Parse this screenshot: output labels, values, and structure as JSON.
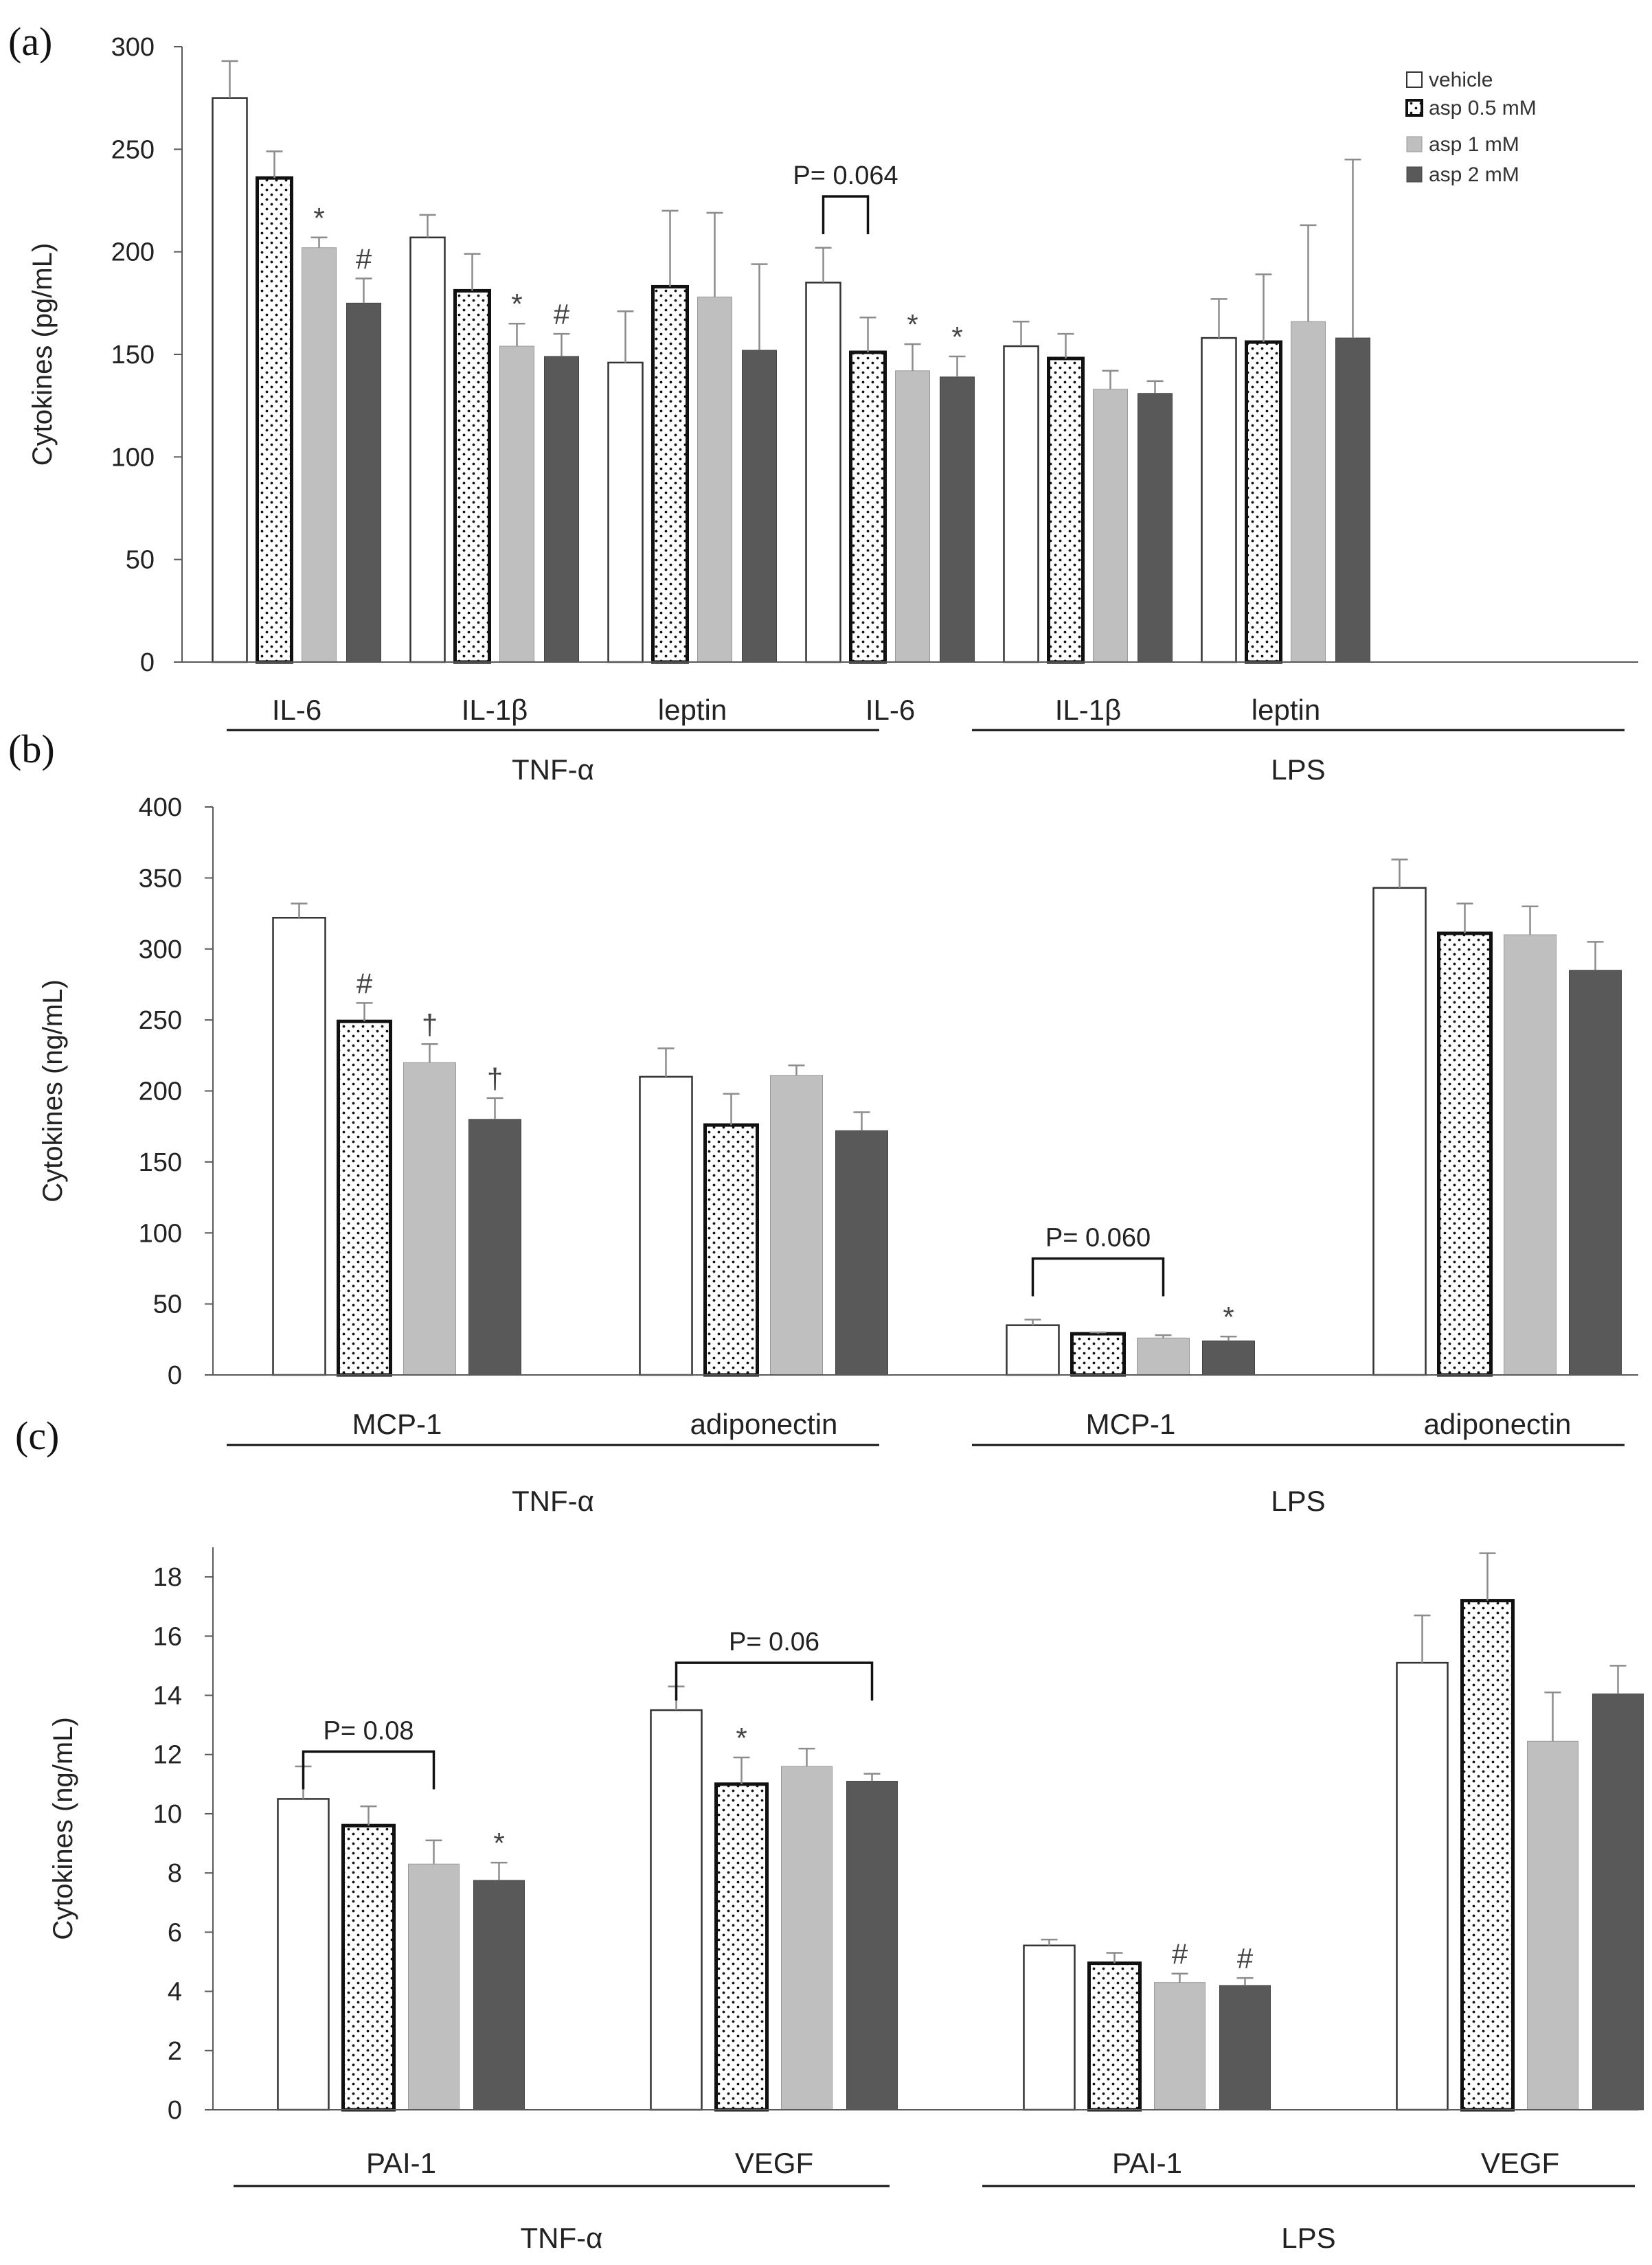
{
  "legend": {
    "entries": [
      {
        "name": "vehicle",
        "fill": "white"
      },
      {
        "name": "asp 0.5 mM",
        "fill": "dots"
      },
      {
        "name": "asp 1 mM",
        "fill": "#bfbfbf"
      },
      {
        "name": "asp 2 mM",
        "fill": "#595959"
      }
    ]
  },
  "colors": {
    "vehicle": "#ffffff",
    "asp1": "#bfbfbf",
    "asp2": "#595959",
    "axis": "#595959",
    "text": "#222222"
  },
  "chart_data": [
    {
      "type": "bar",
      "panel_label": "(a)",
      "ylabel": "Cytokines (pg/mL)",
      "ylim": [
        0,
        300
      ],
      "yticks": [
        0,
        50,
        100,
        150,
        200,
        250,
        300
      ],
      "categories": [
        "IL-6",
        "IL-1β",
        "leptin",
        "IL-6",
        "IL-1β",
        "leptin"
      ],
      "groups": [
        {
          "label": "TNF-α",
          "from": 0,
          "to": 2
        },
        {
          "label": "LPS",
          "from": 3,
          "to": 5
        }
      ],
      "series": [
        {
          "name": "vehicle",
          "values": [
            275,
            207,
            146,
            185,
            154,
            158
          ],
          "errors": [
            18,
            11,
            25,
            17,
            12,
            19
          ]
        },
        {
          "name": "asp 0.5 mM",
          "values": [
            236,
            181,
            183,
            151,
            148,
            156
          ],
          "errors": [
            13,
            18,
            37,
            17,
            12,
            33
          ]
        },
        {
          "name": "asp 1 mM",
          "values": [
            202,
            154,
            178,
            142,
            133,
            166
          ],
          "errors": [
            5,
            11,
            41,
            13,
            9,
            47
          ]
        },
        {
          "name": "asp 2 mM",
          "values": [
            175,
            149,
            152,
            139,
            131,
            158
          ],
          "errors": [
            12,
            11,
            42,
            10,
            6,
            87
          ]
        }
      ],
      "annotations": [
        {
          "category": 0,
          "series": 2,
          "text": "*"
        },
        {
          "category": 0,
          "series": 3,
          "text": "#"
        },
        {
          "category": 1,
          "series": 2,
          "text": "*"
        },
        {
          "category": 1,
          "series": 3,
          "text": "#"
        },
        {
          "category": 3,
          "series": 2,
          "text": "*"
        },
        {
          "category": 3,
          "series": 3,
          "text": "*"
        }
      ],
      "brackets": [
        {
          "category": 3,
          "from_series": 0,
          "to_series": 1,
          "y": 227,
          "text": "P= 0.064"
        }
      ]
    },
    {
      "type": "bar",
      "panel_label": "(b)",
      "ylabel": "Cytokines (ng/mL)",
      "ylim": [
        0,
        400
      ],
      "yticks": [
        0,
        50,
        100,
        150,
        200,
        250,
        300,
        350,
        400
      ],
      "categories": [
        "MCP-1",
        "adiponectin",
        "MCP-1",
        "adiponectin"
      ],
      "groups": [
        {
          "label": "TNF-α",
          "from": 0,
          "to": 1
        },
        {
          "label": "LPS",
          "from": 2,
          "to": 3
        }
      ],
      "series": [
        {
          "name": "vehicle",
          "values": [
            322,
            210,
            35,
            343
          ],
          "errors": [
            10,
            20,
            4,
            20
          ]
        },
        {
          "name": "asp 0.5 mM",
          "values": [
            249,
            176,
            29,
            311
          ],
          "errors": [
            13,
            22,
            1,
            21
          ]
        },
        {
          "name": "asp 1 mM",
          "values": [
            220,
            211,
            26,
            310
          ],
          "errors": [
            13,
            7,
            2,
            20
          ]
        },
        {
          "name": "asp 2 mM",
          "values": [
            180,
            172,
            24,
            285
          ],
          "errors": [
            15,
            13,
            3,
            20
          ]
        }
      ],
      "annotations": [
        {
          "category": 0,
          "series": 1,
          "text": "#"
        },
        {
          "category": 0,
          "series": 2,
          "text": "†"
        },
        {
          "category": 0,
          "series": 3,
          "text": "†"
        },
        {
          "category": 2,
          "series": 3,
          "text": "*"
        }
      ],
      "brackets": [
        {
          "category": 2,
          "from_series": 0,
          "to_series": 2,
          "y": 82,
          "text": "P= 0.060"
        }
      ]
    },
    {
      "type": "bar",
      "panel_label": "(c)",
      "ylabel": "Cytokines (ng/mL)",
      "ylim": [
        0,
        19
      ],
      "yticks": [
        0,
        2,
        4,
        6,
        8,
        10,
        12,
        14,
        16,
        18
      ],
      "categories": [
        "PAI-1",
        "VEGF",
        "PAI-1",
        "VEGF"
      ],
      "groups": [
        {
          "label": "TNF-α",
          "from": 0,
          "to": 1
        },
        {
          "label": "LPS",
          "from": 2,
          "to": 3
        }
      ],
      "series": [
        {
          "name": "vehicle",
          "values": [
            10.5,
            13.5,
            5.55,
            15.1
          ],
          "errors": [
            1.1,
            0.8,
            0.2,
            1.6
          ]
        },
        {
          "name": "asp 0.5 mM",
          "values": [
            9.6,
            11.0,
            4.95,
            17.2
          ],
          "errors": [
            0.65,
            0.9,
            0.35,
            1.6
          ]
        },
        {
          "name": "asp 1 mM",
          "values": [
            8.3,
            11.6,
            4.3,
            12.45
          ],
          "errors": [
            0.8,
            0.6,
            0.3,
            1.65
          ]
        },
        {
          "name": "asp 2 mM",
          "values": [
            7.75,
            11.1,
            4.2,
            14.05
          ],
          "errors": [
            0.6,
            0.25,
            0.25,
            0.95
          ]
        }
      ],
      "annotations": [
        {
          "category": 0,
          "series": 3,
          "text": "*"
        },
        {
          "category": 1,
          "series": 1,
          "text": "*"
        },
        {
          "category": 2,
          "series": 2,
          "text": "#"
        },
        {
          "category": 2,
          "series": 3,
          "text": "#"
        }
      ],
      "brackets": [
        {
          "category": 0,
          "from_series": 0,
          "to_series": 2,
          "y": 12.1,
          "text": "P= 0.08"
        },
        {
          "category": 1,
          "from_series": 0,
          "to_series": 3,
          "y": 15.1,
          "text": "P= 0.06"
        }
      ]
    }
  ]
}
